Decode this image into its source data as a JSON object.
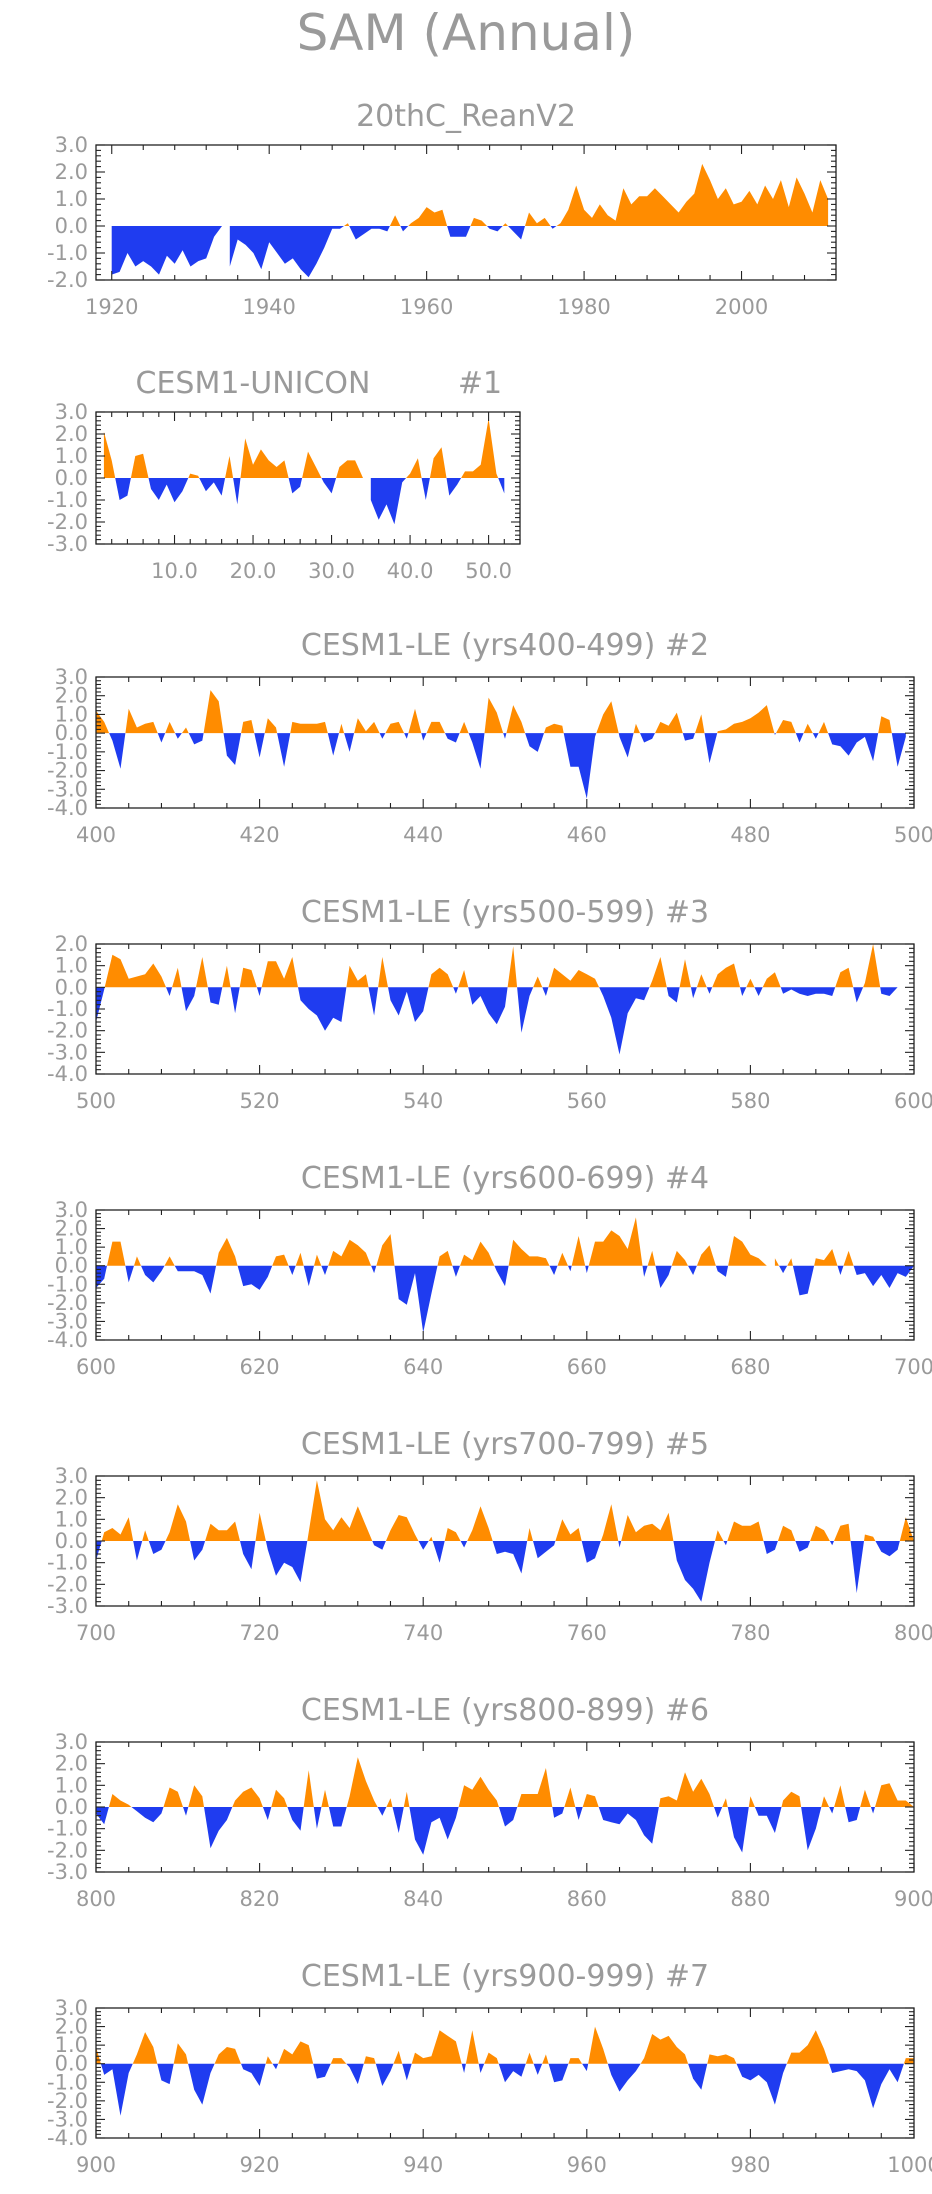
{
  "title": "SAM (Annual)",
  "colors": {
    "positive": "#ff8c00",
    "negative": "#1f3cf0",
    "frame": "#222222",
    "text": "#9a9a9a"
  },
  "chart_data": [
    {
      "type": "area",
      "title": "20thC_ReanV2",
      "xlim": [
        1918,
        2012
      ],
      "ylim": [
        -2.0,
        3.0
      ],
      "xticks": [
        1920,
        1940,
        1960,
        1980,
        2000
      ],
      "yticks": [
        -2.0,
        -1.0,
        0.0,
        1.0,
        2.0,
        3.0
      ],
      "x_start": 1920,
      "values": [
        -1.8,
        -1.7,
        -1.0,
        -1.5,
        -1.3,
        -1.5,
        -1.8,
        -1.1,
        -1.4,
        -0.9,
        -1.5,
        -1.3,
        -1.2,
        -0.4,
        0.0,
        -1.5,
        -0.5,
        -0.7,
        -1.0,
        -1.6,
        -0.6,
        -1.0,
        -1.4,
        -1.2,
        -1.6,
        -1.9,
        -1.4,
        -0.8,
        -0.1,
        -0.1,
        0.1,
        -0.5,
        -0.3,
        -0.1,
        -0.1,
        -0.2,
        0.4,
        -0.2,
        0.1,
        0.3,
        0.7,
        0.5,
        0.6,
        -0.4,
        -0.4,
        -0.4,
        0.3,
        0.2,
        -0.1,
        -0.2,
        0.1,
        -0.2,
        -0.5,
        0.5,
        0.1,
        0.3,
        -0.1,
        0.1,
        0.6,
        1.5,
        0.6,
        0.3,
        0.8,
        0.4,
        0.2,
        1.4,
        0.8,
        1.1,
        1.1,
        1.4,
        1.1,
        0.8,
        0.5,
        0.9,
        1.2,
        2.3,
        1.7,
        1.0,
        1.4,
        0.8,
        0.9,
        1.3,
        0.8,
        1.5,
        1.0,
        1.7,
        0.7,
        1.8,
        1.2,
        0.5,
        1.7,
        1.0
      ]
    },
    {
      "type": "area",
      "title": "CESM1-UNICON",
      "run_label": "#1",
      "xlim": [
        0,
        54
      ],
      "ylim": [
        -3.0,
        3.0
      ],
      "xticks": [
        10,
        20,
        30,
        40,
        50
      ],
      "xtick_labels": [
        "10.0",
        "20.0",
        "30.0",
        "40.0",
        "50.0"
      ],
      "yticks": [
        -3.0,
        -2.0,
        -1.0,
        0.0,
        1.0,
        2.0,
        3.0
      ],
      "x_start": 1,
      "values": [
        2.1,
        0.8,
        -1.0,
        -0.8,
        1.0,
        1.1,
        -0.5,
        -1.0,
        -0.3,
        -1.1,
        -0.6,
        0.2,
        0.1,
        -0.6,
        -0.2,
        -0.8,
        1.0,
        -1.2,
        1.8,
        0.6,
        1.3,
        0.8,
        0.5,
        0.8,
        -0.7,
        -0.4,
        1.2,
        0.5,
        -0.2,
        -0.7,
        0.5,
        0.8,
        0.8,
        0.0,
        -1.0,
        -1.9,
        -1.2,
        -2.1,
        -0.2,
        0.2,
        0.9,
        -1.0,
        0.9,
        1.4,
        -0.8,
        -0.3,
        0.3,
        0.3,
        0.6,
        2.7,
        0.2,
        -0.7
      ]
    },
    {
      "type": "area",
      "title": "CESM1-LE (yrs400-499)",
      "run_label": "#2",
      "xlim": [
        400,
        500
      ],
      "ylim": [
        -4.0,
        3.0
      ],
      "xticks": [
        400,
        420,
        440,
        460,
        480,
        500
      ],
      "yticks": [
        -4.0,
        -3.0,
        -2.0,
        -1.0,
        0.0,
        1.0,
        2.0,
        3.0
      ],
      "x_start": 400,
      "values": [
        1.2,
        0.6,
        -0.4,
        -1.9,
        1.3,
        0.3,
        0.5,
        0.6,
        -0.5,
        0.6,
        -0.3,
        0.3,
        -0.6,
        -0.4,
        2.3,
        1.7,
        -1.2,
        -1.7,
        0.6,
        0.7,
        -1.3,
        0.8,
        0.3,
        -1.8,
        0.6,
        0.5,
        0.5,
        0.5,
        0.6,
        -1.2,
        0.5,
        -1.0,
        0.8,
        0.1,
        0.6,
        -0.3,
        0.5,
        0.6,
        -0.3,
        1.3,
        -0.4,
        0.6,
        0.6,
        -0.3,
        -0.5,
        0.6,
        -0.5,
        -1.9,
        1.9,
        1.1,
        -0.3,
        1.5,
        0.6,
        -0.7,
        -1.0,
        0.3,
        0.5,
        0.4,
        -1.8,
        -1.8,
        -3.5,
        -0.2,
        1.0,
        1.7,
        -0.2,
        -1.3,
        0.5,
        -0.5,
        -0.3,
        0.6,
        0.4,
        1.1,
        -0.4,
        -0.3,
        1.0,
        -1.6,
        0.1,
        0.2,
        0.5,
        0.6,
        0.8,
        1.1,
        1.5,
        -0.1,
        0.7,
        0.6,
        -0.5,
        0.5,
        -0.3,
        0.6,
        -0.6,
        -0.7,
        -1.2,
        -0.5,
        -0.2,
        -1.5,
        0.9,
        0.7,
        -1.8,
        -0.2
      ]
    },
    {
      "type": "area",
      "title": "CESM1-LE (yrs500-599)",
      "run_label": "#3",
      "xlim": [
        500,
        600
      ],
      "ylim": [
        -4.0,
        2.0
      ],
      "xticks": [
        500,
        520,
        540,
        560,
        580,
        600
      ],
      "yticks": [
        -4.0,
        -3.0,
        -2.0,
        -1.0,
        0.0,
        1.0,
        2.0
      ],
      "x_start": 500,
      "values": [
        -1.6,
        -0.1,
        1.5,
        1.3,
        0.4,
        0.5,
        0.6,
        1.1,
        0.5,
        -0.4,
        0.9,
        -1.1,
        -0.4,
        1.4,
        -0.7,
        -0.8,
        1.0,
        -1.2,
        0.9,
        0.8,
        -0.4,
        1.2,
        1.2,
        0.4,
        1.4,
        -0.6,
        -1.0,
        -1.3,
        -2.0,
        -1.4,
        -1.6,
        1.0,
        0.3,
        0.6,
        -1.3,
        1.4,
        -0.6,
        -1.3,
        -0.2,
        -1.6,
        -1.1,
        0.6,
        0.9,
        0.6,
        -0.3,
        0.8,
        -0.8,
        -0.4,
        -1.2,
        -1.7,
        -0.9,
        1.9,
        -2.1,
        -0.4,
        0.5,
        -0.4,
        0.9,
        0.6,
        0.3,
        0.8,
        0.6,
        0.4,
        -0.4,
        -1.4,
        -3.1,
        -1.2,
        -0.5,
        -0.6,
        0.3,
        1.4,
        -0.4,
        -0.7,
        1.3,
        -0.5,
        0.6,
        -0.3,
        0.6,
        0.9,
        1.1,
        -0.4,
        0.4,
        -0.4,
        0.4,
        0.7,
        -0.3,
        -0.1,
        -0.3,
        -0.4,
        -0.3,
        -0.3,
        -0.4,
        0.7,
        0.9,
        -0.7,
        0.2,
        2.0,
        -0.3,
        -0.4,
        0.0,
        0.0
      ]
    },
    {
      "type": "area",
      "title": "CESM1-LE (yrs600-699)",
      "run_label": "#4",
      "xlim": [
        600,
        700
      ],
      "ylim": [
        -4.0,
        3.0
      ],
      "xticks": [
        600,
        620,
        640,
        660,
        680,
        700
      ],
      "yticks": [
        -4.0,
        -3.0,
        -2.0,
        -1.0,
        0.0,
        1.0,
        2.0,
        3.0
      ],
      "x_start": 600,
      "values": [
        -1.2,
        -0.7,
        1.3,
        1.3,
        -0.9,
        0.5,
        -0.5,
        -0.9,
        -0.3,
        0.5,
        -0.3,
        -0.3,
        -0.3,
        -0.5,
        -1.5,
        0.7,
        1.5,
        0.5,
        -1.1,
        -1.0,
        -1.3,
        -0.6,
        0.5,
        0.6,
        -0.5,
        0.7,
        -1.1,
        0.6,
        -0.5,
        0.8,
        0.5,
        1.4,
        1.1,
        0.7,
        -0.4,
        1.1,
        1.7,
        -1.8,
        -2.1,
        -0.4,
        -3.6,
        -1.5,
        0.5,
        0.8,
        -0.6,
        0.6,
        0.3,
        1.3,
        0.7,
        -0.3,
        -1.1,
        1.4,
        0.9,
        0.5,
        0.5,
        0.4,
        -0.5,
        0.7,
        -0.3,
        1.6,
        -0.4,
        1.3,
        1.3,
        1.9,
        1.6,
        0.9,
        2.6,
        -0.6,
        0.8,
        -1.2,
        -0.5,
        0.8,
        0.3,
        -0.5,
        0.6,
        1.1,
        -0.3,
        -0.6,
        1.6,
        1.3,
        0.6,
        0.4,
        0.0,
        0.4,
        -0.4,
        0.4,
        -1.6,
        -1.5,
        0.4,
        0.3,
        0.9,
        -0.5,
        0.8,
        -0.5,
        -0.4,
        -1.1,
        -0.5,
        -1.2,
        -0.4,
        -0.6,
        0.0
      ]
    },
    {
      "type": "area",
      "title": "CESM1-LE (yrs700-799)",
      "run_label": "#5",
      "xlim": [
        700,
        800
      ],
      "ylim": [
        -3.0,
        3.0
      ],
      "xticks": [
        700,
        720,
        740,
        760,
        780,
        800
      ],
      "yticks": [
        -3.0,
        -2.0,
        -1.0,
        0.0,
        1.0,
        2.0,
        3.0
      ],
      "x_start": 700,
      "values": [
        -0.9,
        0.4,
        0.6,
        0.3,
        1.1,
        -0.9,
        0.5,
        -0.6,
        -0.4,
        0.4,
        1.7,
        0.9,
        -0.9,
        -0.4,
        0.8,
        0.5,
        0.5,
        0.9,
        -0.6,
        -1.3,
        1.3,
        -0.4,
        -1.6,
        -1.0,
        -1.2,
        -1.9,
        0.4,
        2.8,
        1.0,
        0.5,
        1.1,
        0.6,
        1.6,
        0.7,
        -0.2,
        -0.4,
        0.5,
        1.2,
        1.1,
        0.3,
        -0.4,
        0.2,
        -1.0,
        0.6,
        0.4,
        -0.3,
        0.5,
        1.6,
        0.6,
        -0.6,
        -0.5,
        -0.6,
        -1.5,
        0.6,
        -0.8,
        -0.5,
        -0.2,
        1.0,
        0.3,
        0.6,
        -1.0,
        -0.8,
        0.3,
        1.7,
        -0.3,
        1.2,
        0.4,
        0.7,
        0.8,
        0.5,
        1.3,
        -0.9,
        -1.8,
        -2.2,
        -2.8,
        -1.0,
        0.5,
        -0.2,
        0.9,
        0.7,
        0.7,
        0.9,
        -0.6,
        -0.4,
        0.7,
        0.5,
        -0.5,
        -0.3,
        0.7,
        0.5,
        -0.2,
        0.7,
        0.8,
        -2.4,
        0.3,
        0.2,
        -0.5,
        -0.7,
        -0.4,
        1.1,
        0.0
      ]
    },
    {
      "type": "area",
      "title": "CESM1-LE (yrs800-899)",
      "run_label": "#6",
      "xlim": [
        800,
        900
      ],
      "ylim": [
        -3.0,
        3.0
      ],
      "xticks": [
        800,
        820,
        840,
        860,
        880,
        900
      ],
      "yticks": [
        -3.0,
        -2.0,
        -1.0,
        0.0,
        1.0,
        2.0,
        3.0
      ],
      "x_start": 800,
      "values": [
        -0.3,
        -0.8,
        0.6,
        0.3,
        0.1,
        -0.2,
        -0.5,
        -0.7,
        -0.3,
        0.9,
        0.7,
        -0.4,
        1.0,
        0.5,
        -1.9,
        -1.1,
        -0.6,
        0.3,
        0.7,
        0.9,
        0.4,
        -0.6,
        0.8,
        0.4,
        -0.6,
        -1.1,
        1.7,
        -1.0,
        0.8,
        -0.9,
        -0.9,
        0.5,
        2.3,
        1.2,
        0.3,
        -0.4,
        0.4,
        -1.2,
        0.7,
        -1.5,
        -2.2,
        -0.7,
        -0.5,
        -1.5,
        -0.5,
        1.0,
        0.8,
        1.4,
        0.8,
        0.3,
        -0.9,
        -0.6,
        0.6,
        0.6,
        0.6,
        1.8,
        -0.5,
        -0.3,
        0.9,
        -0.6,
        0.6,
        0.5,
        -0.6,
        -0.7,
        -0.8,
        -0.3,
        -0.6,
        -1.3,
        -1.7,
        0.4,
        0.5,
        0.3,
        1.6,
        0.7,
        1.3,
        0.6,
        -0.5,
        0.4,
        -1.4,
        -2.1,
        0.5,
        -0.4,
        -0.4,
        -1.2,
        0.3,
        0.7,
        0.5,
        -2.0,
        -1.0,
        0.5,
        -0.3,
        1.0,
        -0.7,
        -0.6,
        0.8,
        -0.3,
        1.0,
        1.1,
        0.3,
        0.3,
        0.0
      ]
    },
    {
      "type": "area",
      "title": "CESM1-LE (yrs900-999)",
      "run_label": "#7",
      "xlim": [
        900,
        1000
      ],
      "ylim": [
        -4.0,
        3.0
      ],
      "xticks": [
        900,
        920,
        940,
        960,
        980,
        1000
      ],
      "yticks": [
        -4.0,
        -3.0,
        -2.0,
        -1.0,
        0.0,
        1.0,
        2.0,
        3.0
      ],
      "x_start": 900,
      "values": [
        0.9,
        -0.6,
        -0.3,
        -2.8,
        -0.5,
        0.5,
        1.7,
        0.9,
        -0.9,
        -1.1,
        1.1,
        0.5,
        -1.4,
        -2.2,
        -0.5,
        0.5,
        0.9,
        0.8,
        -0.3,
        -0.5,
        -1.2,
        0.4,
        -0.3,
        0.8,
        0.5,
        1.2,
        1.0,
        -0.8,
        -0.7,
        0.3,
        0.3,
        -0.2,
        -1.1,
        0.4,
        0.3,
        -1.2,
        -0.4,
        0.7,
        -0.9,
        0.6,
        0.3,
        0.4,
        1.8,
        1.5,
        1.2,
        -0.5,
        1.8,
        -0.5,
        0.6,
        0.3,
        -1.0,
        -0.4,
        -0.7,
        0.6,
        -0.6,
        0.5,
        -1.0,
        -0.9,
        0.3,
        0.3,
        -0.4,
        2.0,
        0.8,
        -0.6,
        -1.5,
        -0.9,
        -0.4,
        0.3,
        1.6,
        1.3,
        1.5,
        0.9,
        0.5,
        -0.8,
        -1.4,
        0.5,
        0.4,
        0.5,
        0.3,
        -0.7,
        -0.9,
        -0.6,
        -1.0,
        -2.2,
        -0.5,
        0.6,
        0.6,
        1.0,
        1.8,
        0.8,
        -0.5,
        -0.4,
        -0.3,
        -0.4,
        -0.9,
        -2.4,
        -1.1,
        -0.3,
        -1.0,
        0.3,
        0.3
      ]
    }
  ]
}
